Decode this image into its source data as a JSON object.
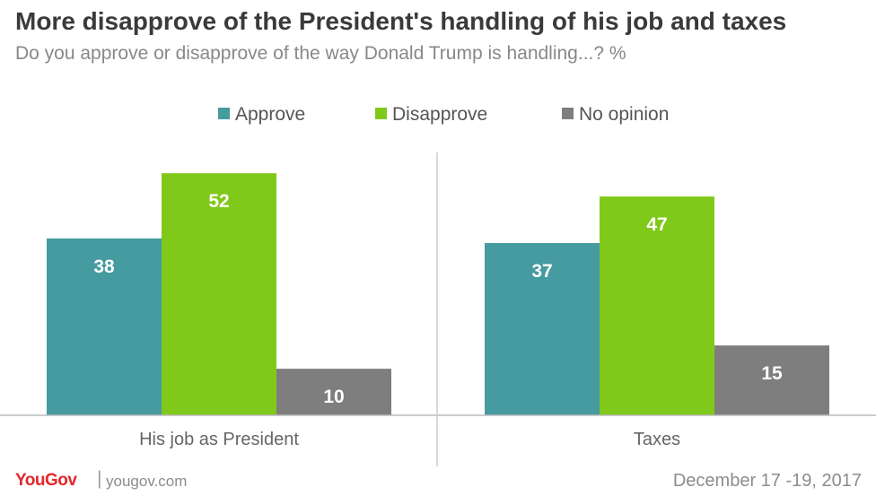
{
  "title": "More disapprove of the President's handling of his job and taxes",
  "subtitle": "Do you approve or disapprove of the way Donald Trump is handling...? %",
  "footer": {
    "brand": "YouGov",
    "url": "yougov.com",
    "date": "December 17 -19, 2017"
  },
  "colors": {
    "approve": "#459ba0",
    "disapprove": "#80c91a",
    "no_opinion": "#7e7e7e"
  },
  "chart_data": {
    "type": "bar",
    "categories": [
      "His job as President",
      "Taxes"
    ],
    "series": [
      {
        "name": "Approve",
        "values": [
          38,
          37
        ]
      },
      {
        "name": "Disapprove",
        "values": [
          52,
          47
        ]
      },
      {
        "name": "No opinion",
        "values": [
          10,
          15
        ]
      }
    ],
    "legend_position": "top-center",
    "ylim": [
      0,
      58
    ],
    "grid": false
  }
}
